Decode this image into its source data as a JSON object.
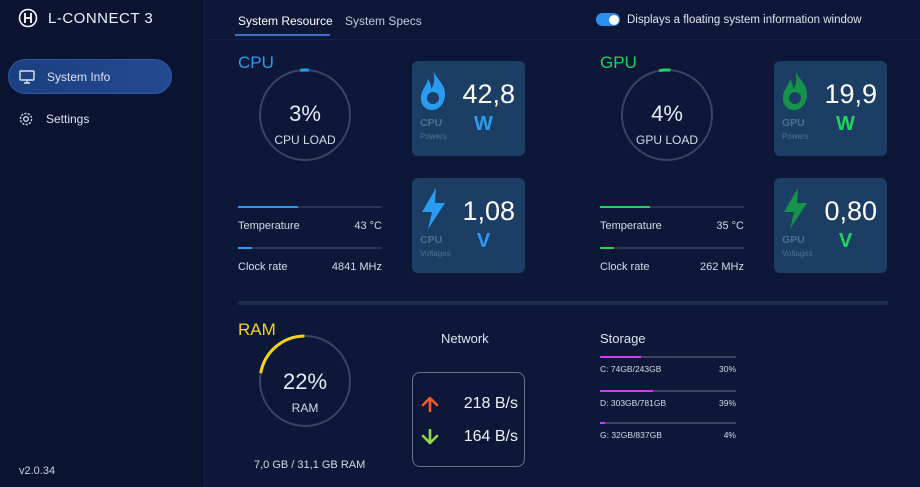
{
  "app": {
    "title": "L-CONNECT 3",
    "version": "v2.0.34",
    "icons": [
      "logo-icon",
      "monitor-icon",
      "gear-icon"
    ]
  },
  "sidebar": {
    "items": [
      {
        "label": "System Info",
        "active": true,
        "icon": "monitor-icon"
      },
      {
        "label": "Settings",
        "active": false,
        "icon": "gear-icon"
      }
    ]
  },
  "tabs": [
    {
      "label": "System Resource",
      "active": true
    },
    {
      "label": "System Specs",
      "active": false
    }
  ],
  "floating_toggle": {
    "label": "Displays a floating system information window",
    "on": true
  },
  "colors": {
    "cpu": "#2a9cf0",
    "gpu": "#1fd35c",
    "ram": "#f2d41f",
    "storage": "#d63af0",
    "upload": "#f0592a",
    "download": "#8ed84a",
    "card_bg": "#1d3e64"
  },
  "cpu": {
    "title": "CPU",
    "load_value": "3%",
    "load_label": "CPU LOAD",
    "load_percent": 3,
    "temperature": {
      "label": "Temperature",
      "value": "43 °C",
      "fill": 0.42
    },
    "clock": {
      "label": "Clock rate",
      "value": "4841 MHz",
      "fill": 0.1
    },
    "power_card": {
      "value": "42,8",
      "unit": "W",
      "category": "CPU",
      "sub": "Powers",
      "icon": "flame-icon"
    },
    "voltage_card": {
      "value": "1,08",
      "unit": "V",
      "category": "CPU",
      "sub": "Voltages",
      "icon": "lightning-icon"
    }
  },
  "gpu": {
    "title": "GPU",
    "load_value": "4%",
    "load_label": "GPU LOAD",
    "load_percent": 4,
    "temperature": {
      "label": "Temperature",
      "value": "35 °C",
      "fill": 0.35
    },
    "clock": {
      "label": "Clock rate",
      "value": "262 MHz",
      "fill": 0.1
    },
    "power_card": {
      "value": "19,9",
      "unit": "W",
      "category": "GPU",
      "sub": "Powers",
      "icon": "flame-icon"
    },
    "voltage_card": {
      "value": "0,80",
      "unit": "V",
      "category": "GPU",
      "sub": "Voltages",
      "icon": "lightning-icon"
    }
  },
  "ram": {
    "title": "RAM",
    "load_value": "22%",
    "load_label": "RAM",
    "load_percent": 22,
    "summary": "7,0 GB / 31,1 GB RAM"
  },
  "network": {
    "title": "Network",
    "upload": "218 B/s",
    "download": "164 B/s",
    "upload_icon": "arrow-up-icon",
    "download_icon": "arrow-down-icon"
  },
  "storage": {
    "title": "Storage",
    "drives": [
      {
        "label": "C: 74GB/243GB",
        "percent": "30%",
        "fraction": 0.3
      },
      {
        "label": "D: 303GB/781GB",
        "percent": "39%",
        "fraction": 0.39
      },
      {
        "label": "G: 32GB/837GB",
        "percent": "4%",
        "fraction": 0.04
      }
    ]
  }
}
